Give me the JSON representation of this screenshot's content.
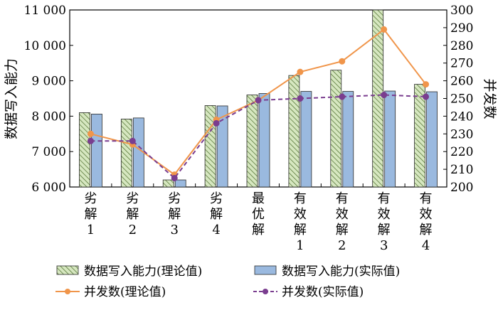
{
  "chart_data": {
    "type": "bar",
    "categories": [
      [
        "劣",
        "解",
        "1"
      ],
      [
        "劣",
        "解",
        "2"
      ],
      [
        "劣",
        "解",
        "3"
      ],
      [
        "劣",
        "解",
        "4"
      ],
      [
        "最",
        "优",
        "解"
      ],
      [
        "有",
        "效",
        "解",
        "1"
      ],
      [
        "有",
        "效",
        "解",
        "2"
      ],
      [
        "有",
        "效",
        "解",
        "3"
      ],
      [
        "有",
        "效",
        "解",
        "4"
      ]
    ],
    "ylabel": "数据写入能力",
    "y2label": "并发数",
    "ylim": [
      6000,
      11000
    ],
    "y2lim": [
      200,
      300
    ],
    "yticks": [
      "6 000",
      "7 000",
      "8 000",
      "9 000",
      "10 000",
      "11 000"
    ],
    "y2ticks": [
      "200",
      "210",
      "220",
      "230",
      "240",
      "250",
      "260",
      "270",
      "280",
      "290",
      "300"
    ],
    "series": [
      {
        "name": "数据写入能力(理论值)",
        "type": "bar",
        "axis": "left",
        "pattern": "hatch",
        "color": "#c9dfb0",
        "values": [
          8100,
          7920,
          6200,
          8300,
          8600,
          9150,
          9300,
          11000,
          8900
        ]
      },
      {
        "name": "数据写入能力(实际值)",
        "type": "bar",
        "axis": "left",
        "color": "#9ab9df",
        "values": [
          8060,
          7950,
          6200,
          8290,
          8640,
          8700,
          8700,
          8710,
          8690
        ]
      },
      {
        "name": "并发数(理论值)",
        "type": "line",
        "axis": "right",
        "style": "solid",
        "color": "#f0954a",
        "values": [
          230,
          224,
          207,
          238,
          249,
          265,
          271,
          289,
          258
        ]
      },
      {
        "name": "并发数(实际值)",
        "type": "line",
        "axis": "right",
        "style": "dashed",
        "color": "#7a3d8f",
        "values": [
          226,
          226,
          205,
          236,
          249,
          250,
          251,
          252,
          251
        ]
      }
    ],
    "legend": "bottom"
  }
}
